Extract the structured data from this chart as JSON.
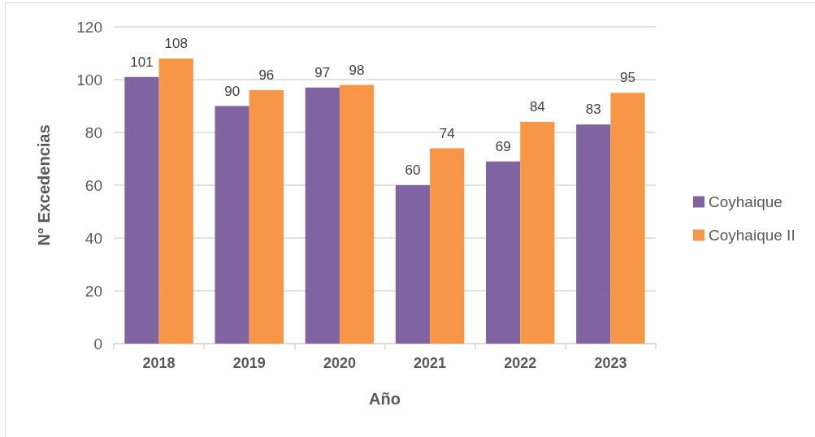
{
  "chart_data": {
    "type": "bar",
    "categories": [
      "2018",
      "2019",
      "2020",
      "2021",
      "2022",
      "2023"
    ],
    "series": [
      {
        "name": "Coyhaique",
        "color": "#8064a2",
        "values": [
          101,
          90,
          97,
          60,
          69,
          83
        ]
      },
      {
        "name": "Coyhaique II",
        "color": "#f79646",
        "values": [
          108,
          96,
          98,
          74,
          84,
          95
        ]
      }
    ],
    "xlabel": "Año",
    "ylabel": "N° Excedencias",
    "ylim": [
      0,
      120
    ],
    "yticks": [
      0,
      20,
      40,
      60,
      80,
      100,
      120
    ],
    "grid": "y",
    "legend": "right",
    "data_labels": true
  }
}
